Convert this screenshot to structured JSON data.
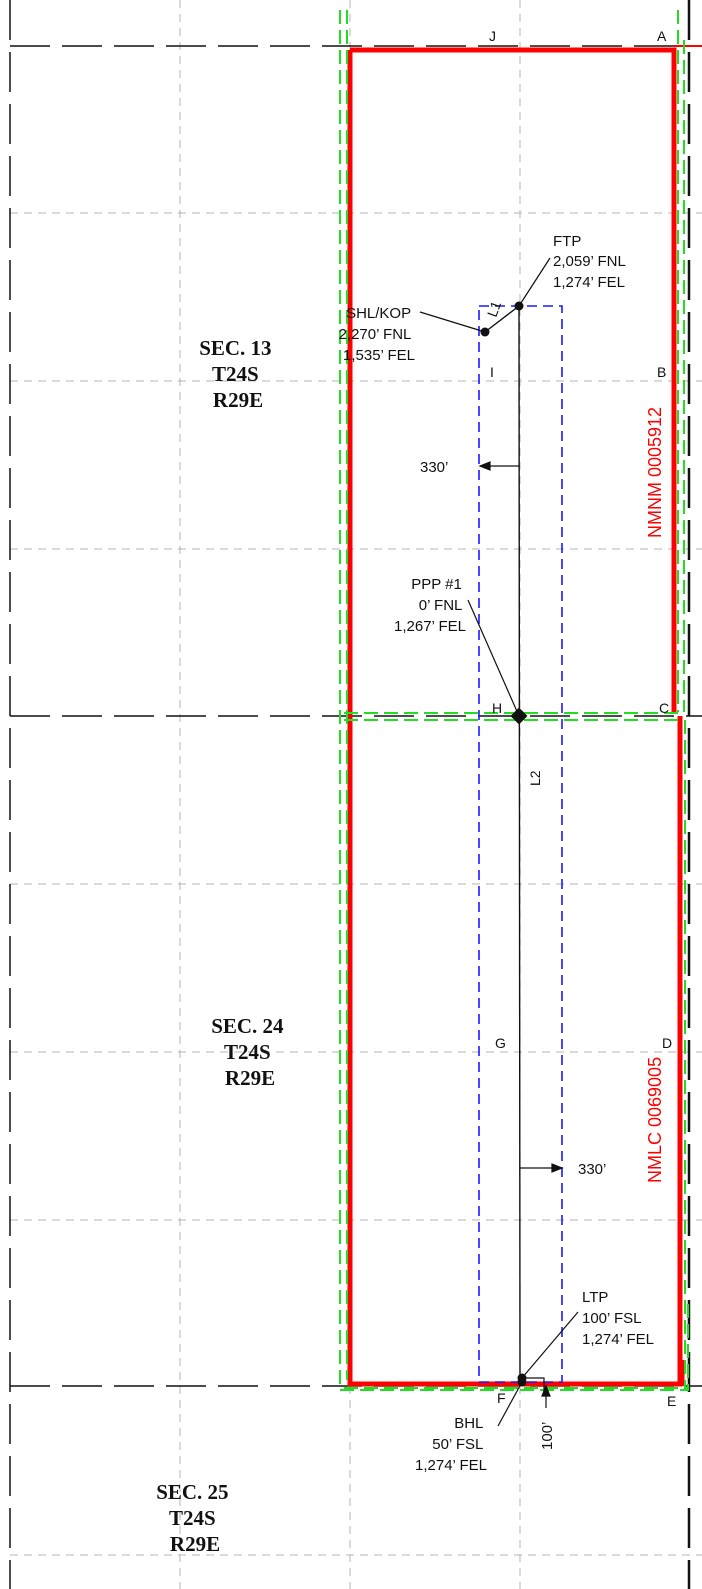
{
  "sections": [
    {
      "lines": [
        "SEC. 13",
        "T24S",
        "R29E"
      ]
    },
    {
      "lines": [
        "SEC. 24",
        "T24S",
        "R29E"
      ]
    },
    {
      "lines": [
        "SEC. 25",
        "T24S",
        "R29E"
      ]
    }
  ],
  "corners": {
    "A": "A",
    "B": "B",
    "C": "C",
    "D": "D",
    "E": "E",
    "F": "F",
    "G": "G",
    "H": "H",
    "I": "I",
    "J": "J"
  },
  "points": {
    "ftp": {
      "name": "FTP",
      "fnl": "2,059’ FNL",
      "fel": "1,274’ FEL"
    },
    "shl": {
      "name": "SHL/KOP",
      "fnl": "2,270’ FNL",
      "fel": "1,535’ FEL"
    },
    "ppp": {
      "name": "PPP #1",
      "fnl": "0’ FNL",
      "fel": "1,267’ FEL"
    },
    "ltp": {
      "name": "LTP",
      "fsl": "100’ FSL",
      "fel": "1,274’ FEL"
    },
    "bhl": {
      "name": "BHL",
      "fsl": "50’ FSL",
      "fel": "1,274’ FEL"
    }
  },
  "leg_labels": {
    "l1": "L1",
    "l2": "L2"
  },
  "dimensions": {
    "setback_north": "330’",
    "setback_south": "330’",
    "bottom_offset": "100’"
  },
  "leases": {
    "north": "NMNM 0005912",
    "south": "NMLC 0069005"
  },
  "colors": {
    "lease_boundary": "#ff0000",
    "unit_boundary": "#22dd22",
    "setback_box": "#1a1aff",
    "linework": "#111111",
    "grid": "#b5b5b5"
  }
}
